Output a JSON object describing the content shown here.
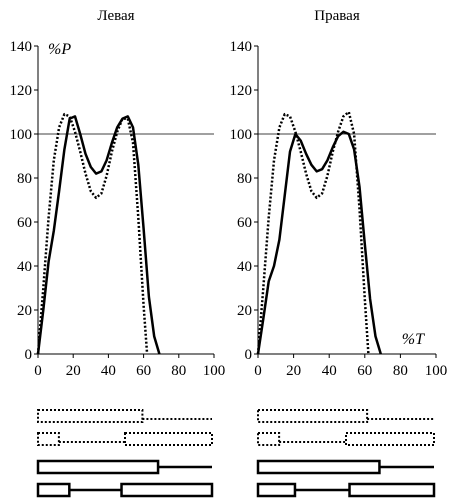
{
  "chart_data": [
    {
      "type": "line",
      "title": "Левая",
      "ylabel": "%P",
      "xlabel": "",
      "xlim": [
        0,
        100
      ],
      "ylim": [
        0,
        140
      ],
      "x_ticks": [
        0,
        20,
        40,
        60,
        80,
        100
      ],
      "y_ticks": [
        0,
        20,
        40,
        60,
        80,
        100,
        120,
        140
      ],
      "reference_line_y": 100,
      "grid": false,
      "series": [
        {
          "style": "dotted",
          "x": [
            0,
            3,
            6,
            9,
            12,
            15,
            18,
            21,
            24,
            27,
            30,
            33,
            36,
            39,
            42,
            45,
            48,
            51,
            54,
            57,
            60,
            62
          ],
          "y": [
            0,
            30,
            62,
            88,
            103,
            109,
            108,
            101,
            92,
            82,
            74,
            71,
            73,
            81,
            92,
            101,
            107,
            107,
            96,
            62,
            22,
            0
          ]
        },
        {
          "style": "solid",
          "x": [
            0,
            3,
            6,
            9,
            12,
            15,
            18,
            21,
            24,
            27,
            30,
            33,
            36,
            39,
            42,
            45,
            48,
            51,
            54,
            57,
            60,
            63,
            66,
            69
          ],
          "y": [
            0,
            20,
            42,
            56,
            74,
            93,
            107,
            108,
            100,
            91,
            85,
            82,
            83,
            88,
            96,
            103,
            107,
            108,
            103,
            86,
            57,
            26,
            8,
            0
          ]
        }
      ]
    },
    {
      "type": "line",
      "title": "Правая",
      "ylabel": "",
      "xlabel": "%T",
      "xlim": [
        0,
        100
      ],
      "ylim": [
        0,
        140
      ],
      "x_ticks": [
        0,
        20,
        40,
        60,
        80,
        100
      ],
      "y_ticks": [
        0,
        20,
        40,
        60,
        80,
        100,
        120,
        140
      ],
      "reference_line_y": 100,
      "grid": false,
      "series": [
        {
          "style": "dotted",
          "x": [
            0,
            3,
            6,
            9,
            12,
            15,
            18,
            21,
            24,
            27,
            30,
            33,
            36,
            39,
            42,
            45,
            48,
            51,
            54,
            57,
            60,
            62
          ],
          "y": [
            0,
            30,
            62,
            88,
            103,
            109,
            108,
            101,
            92,
            82,
            74,
            71,
            73,
            81,
            92,
            101,
            108,
            110,
            100,
            66,
            25,
            0
          ]
        },
        {
          "style": "solid",
          "x": [
            0,
            3,
            6,
            9,
            12,
            15,
            18,
            21,
            24,
            27,
            30,
            33,
            36,
            39,
            42,
            45,
            48,
            51,
            54,
            57,
            60,
            63,
            66,
            69
          ],
          "y": [
            0,
            16,
            33,
            40,
            52,
            72,
            92,
            100,
            97,
            91,
            86,
            83,
            84,
            88,
            94,
            99,
            101,
            100,
            93,
            76,
            50,
            25,
            8,
            0
          ]
        }
      ]
    }
  ],
  "gait_bars": [
    {
      "rows": [
        {
          "style": "dotted",
          "segments": [
            {
              "type": "box",
              "from": 0,
              "to": 60
            },
            {
              "type": "line",
              "from": 60,
              "to": 100
            }
          ]
        },
        {
          "style": "dotted",
          "segments": [
            {
              "type": "box",
              "from": 0,
              "to": 12
            },
            {
              "type": "line",
              "from": 12,
              "to": 50
            },
            {
              "type": "box",
              "from": 50,
              "to": 100
            }
          ]
        },
        {
          "style": "solid",
          "segments": [
            {
              "type": "box",
              "from": 0,
              "to": 69
            },
            {
              "type": "line",
              "from": 69,
              "to": 100
            }
          ]
        },
        {
          "style": "solid",
          "segments": [
            {
              "type": "box",
              "from": 0,
              "to": 18
            },
            {
              "type": "line",
              "from": 18,
              "to": 48
            },
            {
              "type": "box",
              "from": 48,
              "to": 100
            }
          ]
        }
      ]
    },
    {
      "rows": [
        {
          "style": "dotted",
          "segments": [
            {
              "type": "box",
              "from": 0,
              "to": 62
            },
            {
              "type": "line",
              "from": 62,
              "to": 100
            }
          ]
        },
        {
          "style": "dotted",
          "segments": [
            {
              "type": "box",
              "from": 0,
              "to": 12
            },
            {
              "type": "line",
              "from": 12,
              "to": 50
            },
            {
              "type": "box",
              "from": 50,
              "to": 100
            }
          ]
        },
        {
          "style": "solid",
          "segments": [
            {
              "type": "box",
              "from": 0,
              "to": 69
            },
            {
              "type": "line",
              "from": 69,
              "to": 100
            }
          ]
        },
        {
          "style": "solid",
          "segments": [
            {
              "type": "box",
              "from": 0,
              "to": 21
            },
            {
              "type": "line",
              "from": 21,
              "to": 52
            },
            {
              "type": "box",
              "from": 52,
              "to": 100
            }
          ]
        }
      ]
    }
  ]
}
